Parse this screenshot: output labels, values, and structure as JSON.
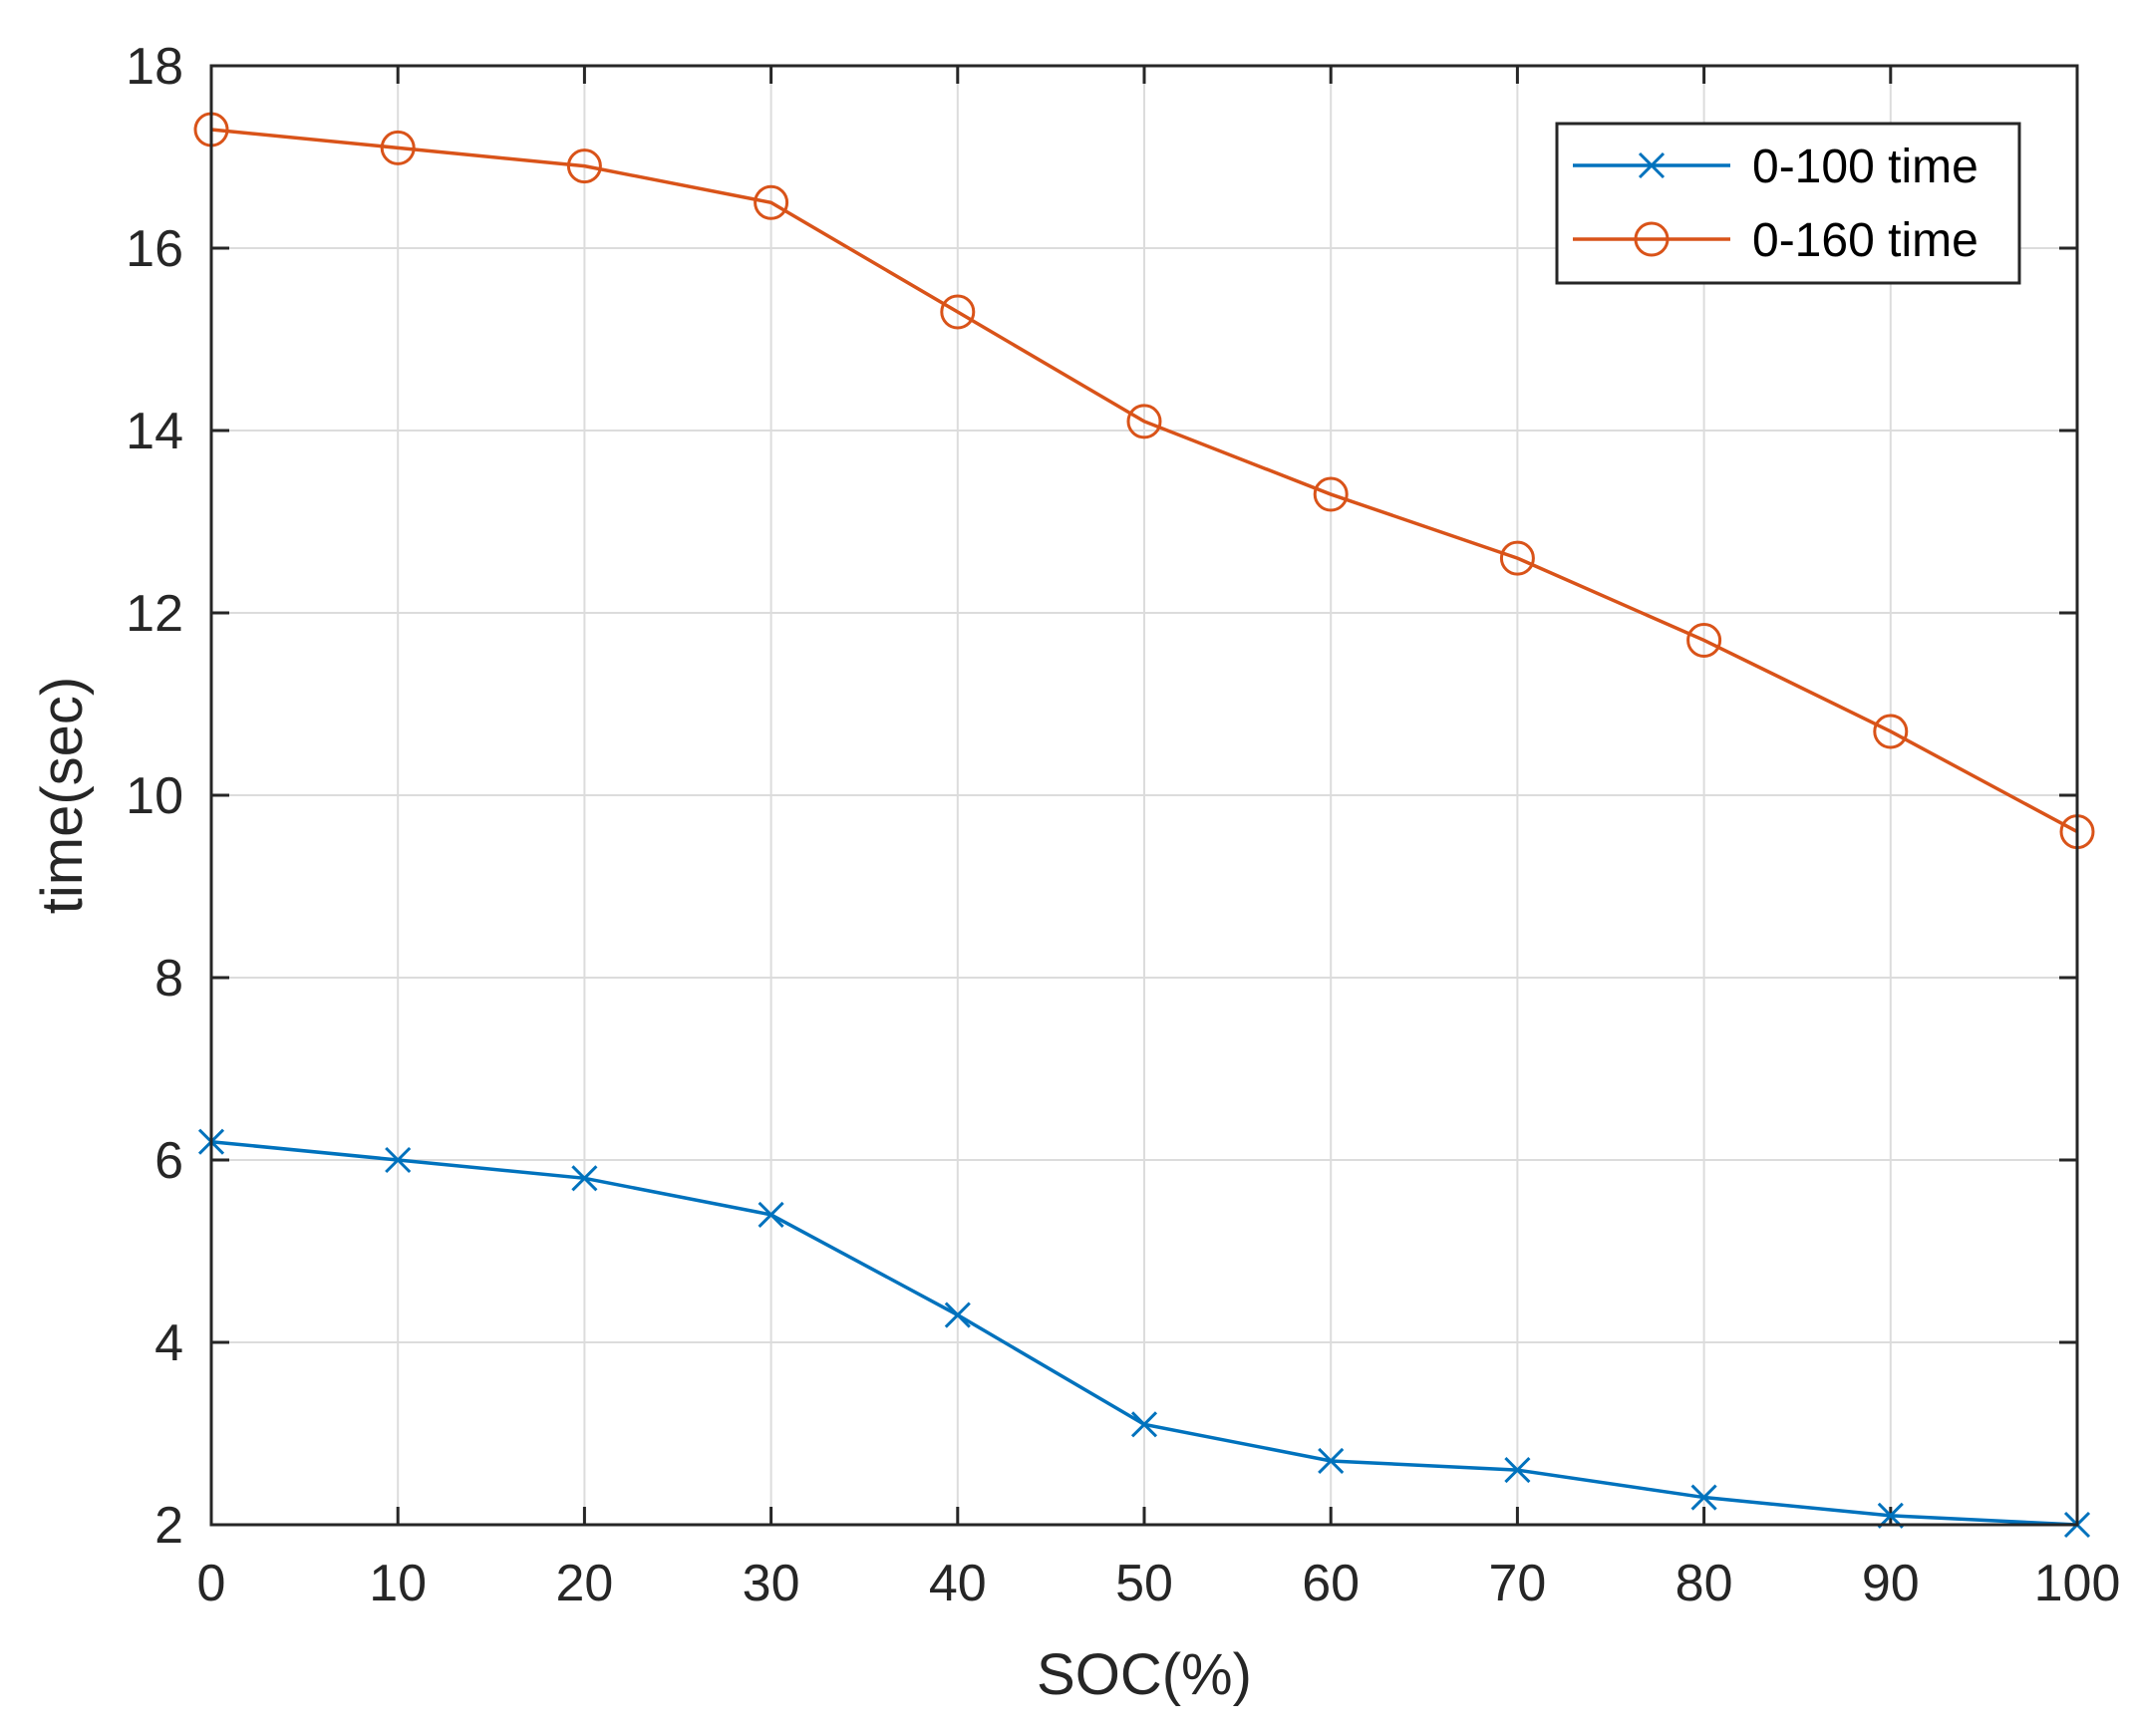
{
  "chart_data": {
    "type": "line",
    "title": "",
    "xlabel": "SOC(%)",
    "ylabel": "time(sec)",
    "x": [
      0,
      10,
      20,
      30,
      40,
      50,
      60,
      70,
      80,
      90,
      100
    ],
    "xlim": [
      0,
      100
    ],
    "ylim": [
      2,
      18
    ],
    "xticks": [
      0,
      10,
      20,
      30,
      40,
      50,
      60,
      70,
      80,
      90,
      100
    ],
    "yticks": [
      2,
      4,
      6,
      8,
      10,
      12,
      14,
      16,
      18
    ],
    "grid": true,
    "legend_location": "top-right",
    "series": [
      {
        "name": "0-100 time",
        "color": "#0072BD",
        "marker": "x",
        "values": [
          6.2,
          6.0,
          5.8,
          5.4,
          4.3,
          3.1,
          2.7,
          2.6,
          2.3,
          2.1,
          2.0
        ]
      },
      {
        "name": "0-160 time",
        "color": "#D95319",
        "marker": "o",
        "values": [
          17.3,
          17.1,
          16.9,
          16.5,
          15.3,
          14.1,
          13.3,
          12.6,
          11.7,
          10.7,
          9.6
        ]
      }
    ]
  }
}
